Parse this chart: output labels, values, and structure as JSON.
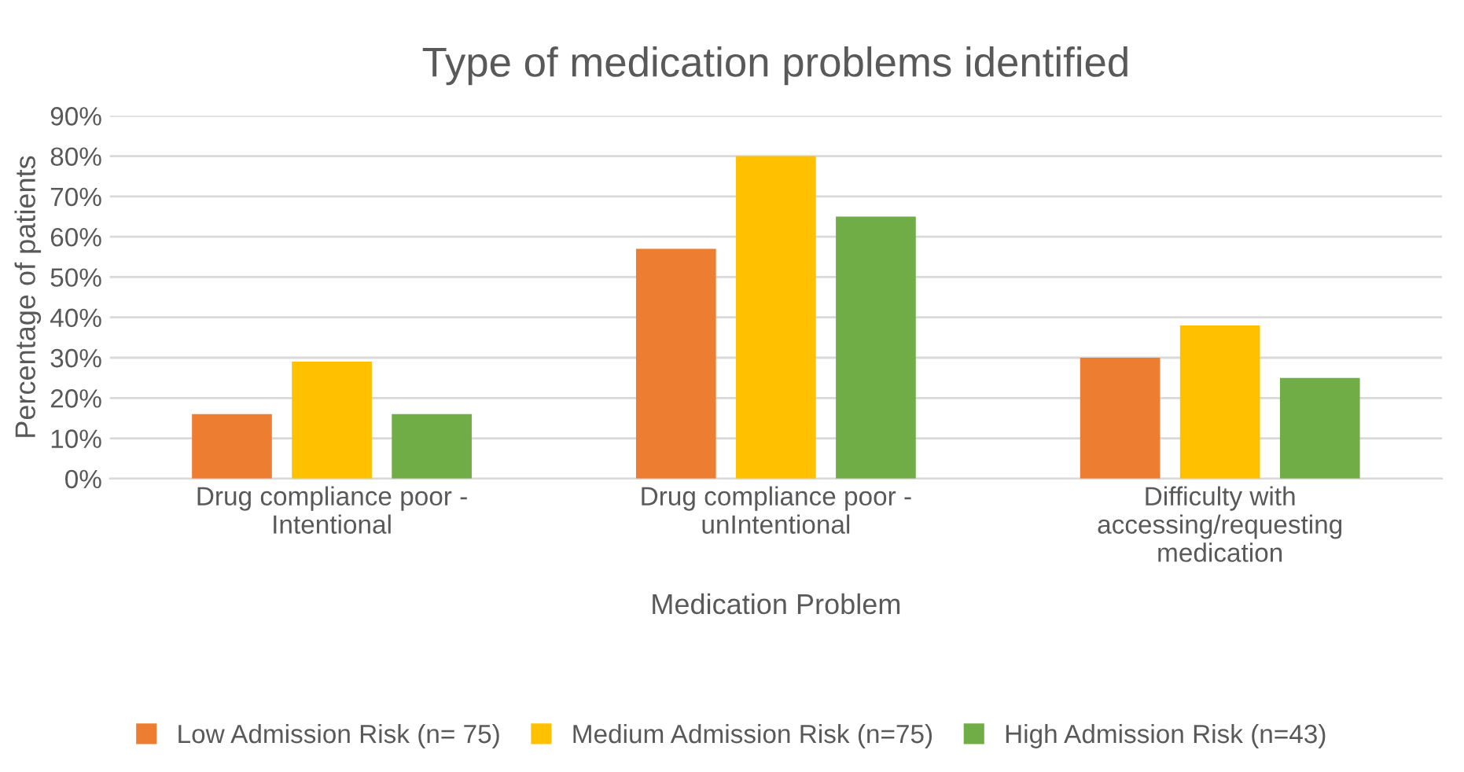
{
  "chart_data": {
    "type": "bar",
    "title": "Type of medication problems identified",
    "xlabel": "Medication Problem",
    "ylabel": "Percentage of patients",
    "categories": [
      "Drug compliance poor -\nIntentional",
      "Drug compliance poor -\nunIntentional",
      "Difficulty with\naccessing/requesting\nmedication"
    ],
    "series": [
      {
        "name": "Low Admission Risk (n= 75)",
        "color": "#ed7d31",
        "values": [
          16,
          57,
          30
        ]
      },
      {
        "name": "Medium Admission Risk (n=75)",
        "color": "#ffc000",
        "values": [
          29,
          80,
          38
        ]
      },
      {
        "name": "High Admission Risk (n=43)",
        "color": "#70ad47",
        "values": [
          16,
          65,
          25
        ]
      }
    ],
    "ylim": [
      0,
      90
    ],
    "yticks": [
      {
        "value": 0,
        "label": "0%"
      },
      {
        "value": 10,
        "label": "10%"
      },
      {
        "value": 20,
        "label": "20%"
      },
      {
        "value": 30,
        "label": "30%"
      },
      {
        "value": 40,
        "label": "40%"
      },
      {
        "value": 50,
        "label": "50%"
      },
      {
        "value": 60,
        "label": "60%"
      },
      {
        "value": 70,
        "label": "70%"
      },
      {
        "value": 80,
        "label": "80%"
      },
      {
        "value": 90,
        "label": "90%"
      }
    ],
    "grid": "y",
    "legend": "bottom"
  }
}
